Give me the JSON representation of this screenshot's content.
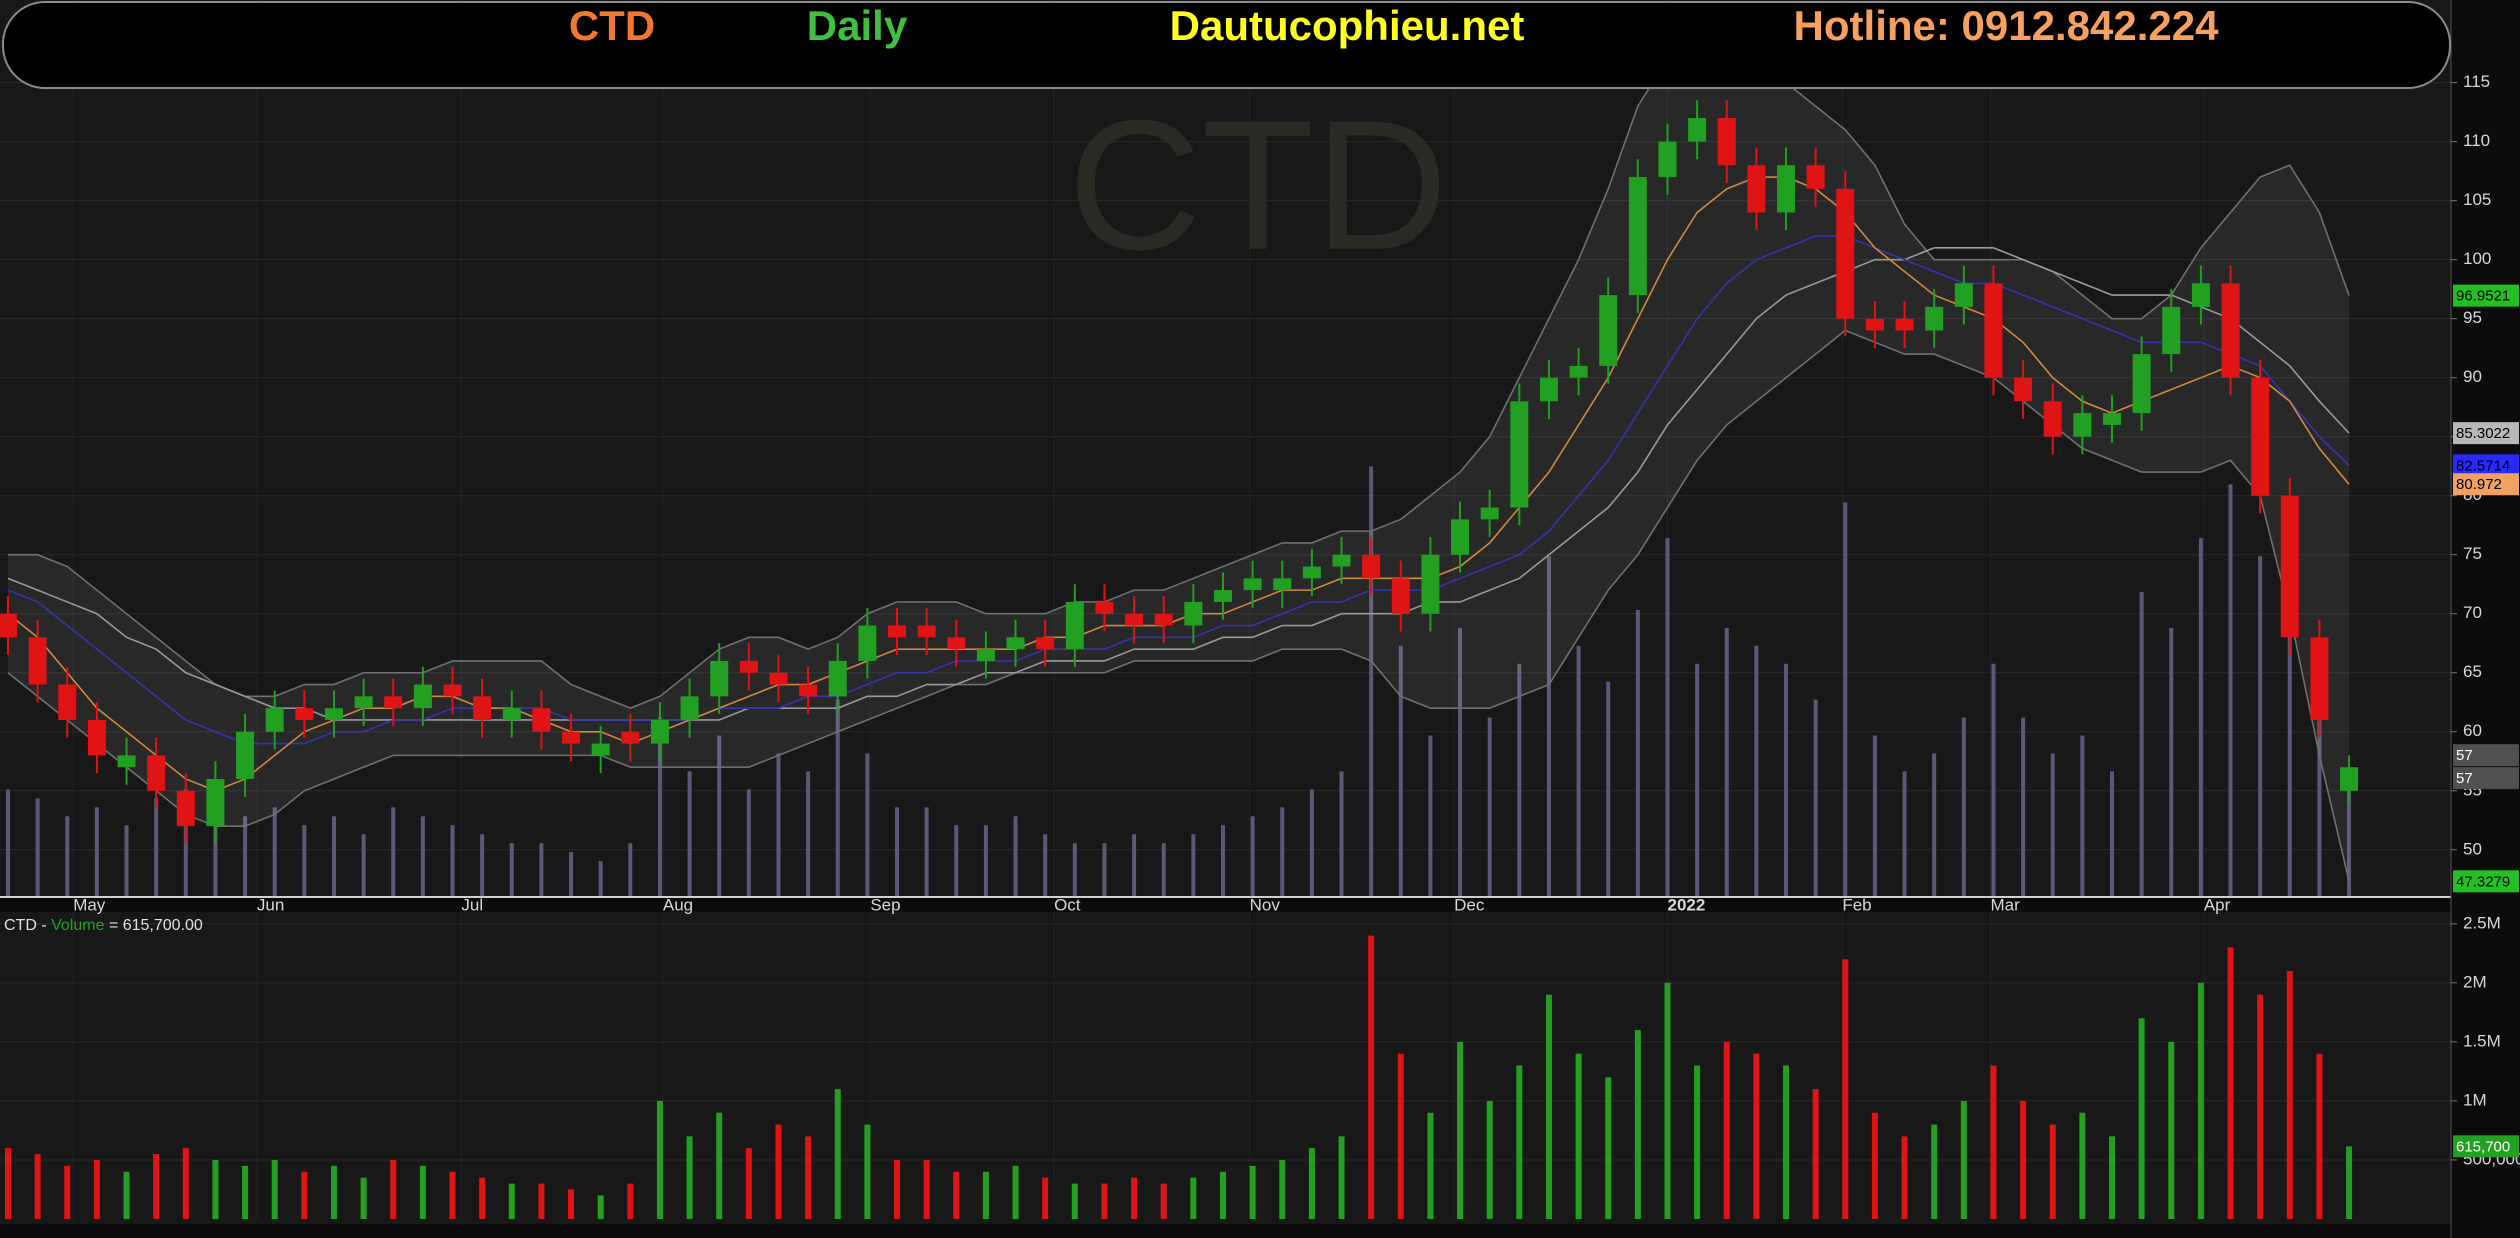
{
  "chart_data": {
    "type": "candlestick",
    "header": {
      "symbol": "CTD",
      "interval": "Daily",
      "site": "Dautucophieu.net",
      "hotline": "Hotline: 0912.842.224"
    },
    "watermark": "CTD",
    "legend": {
      "symbol": "CTD -",
      "name": "Volume",
      "text": "= 615,700.00"
    },
    "x": [
      0,
      1,
      2,
      3,
      4,
      5,
      6,
      7,
      8,
      9,
      10,
      11,
      12,
      13,
      14,
      15,
      16,
      17,
      18,
      19,
      20,
      21,
      22,
      23,
      24,
      25,
      26,
      27,
      28,
      29,
      30,
      31,
      32,
      33,
      34,
      35,
      36,
      37,
      38,
      39,
      40,
      41,
      42,
      43,
      44,
      45,
      46,
      47,
      48,
      49,
      50,
      51,
      52,
      53,
      54,
      55,
      56,
      57,
      58,
      59,
      60,
      61,
      62,
      63,
      64,
      65,
      66,
      67,
      68,
      69,
      70,
      71,
      72,
      73,
      74,
      75,
      76,
      77,
      78,
      79
    ],
    "xlim": [
      -0.27,
      82.44
    ],
    "xticks": [
      {
        "value": 2.2,
        "label": "May"
      },
      {
        "value": 8.4,
        "label": "Jun"
      },
      {
        "value": 15.3,
        "label": "Jul"
      },
      {
        "value": 22.1,
        "label": "Aug"
      },
      {
        "value": 29.1,
        "label": "Sep"
      },
      {
        "value": 35.3,
        "label": "Oct"
      },
      {
        "value": 41.9,
        "label": "Nov"
      },
      {
        "value": 48.8,
        "label": "Dec"
      },
      {
        "value": 56.0,
        "label": "2022"
      },
      {
        "value": 61.9,
        "label": "Feb"
      },
      {
        "value": 66.9,
        "label": "Mar"
      },
      {
        "value": 74.1,
        "label": "Apr"
      }
    ],
    "open": [
      70,
      68,
      64,
      61,
      57,
      58,
      55,
      52,
      56,
      60,
      62,
      61,
      62,
      63,
      62,
      64,
      63,
      61,
      62,
      60,
      58,
      60,
      59,
      61,
      63,
      66,
      65,
      64,
      63,
      66,
      69,
      69,
      68,
      66,
      67,
      68,
      67,
      71,
      70,
      70,
      69,
      71,
      72,
      72,
      73,
      74,
      75,
      73,
      70,
      75,
      78,
      79,
      88,
      90,
      91,
      97,
      107,
      110,
      112,
      108,
      104,
      108,
      106,
      95,
      95,
      94,
      96,
      98,
      90,
      88,
      85,
      86,
      87,
      92,
      96,
      98,
      90,
      80,
      68,
      55
    ],
    "high": [
      71.5,
      69.5,
      65.5,
      62.5,
      59.5,
      59.5,
      56.5,
      57.5,
      61.5,
      63.5,
      63.5,
      63.5,
      64.5,
      64.5,
      65.5,
      65.5,
      64.5,
      63.5,
      63.5,
      61.5,
      60.5,
      61.5,
      62.5,
      64.5,
      67.5,
      67.5,
      66.5,
      65.5,
      67.5,
      70.5,
      70.5,
      70.5,
      69.5,
      68.5,
      69.5,
      69.5,
      72.5,
      72.5,
      71.5,
      71.5,
      72.5,
      73.5,
      74.5,
      74.5,
      75.5,
      76.5,
      76.5,
      74.5,
      76.5,
      79.5,
      80.5,
      89.5,
      91.5,
      92.5,
      98.5,
      108.5,
      111.5,
      113.5,
      113.5,
      109.5,
      109.5,
      109.5,
      107.5,
      96.5,
      96.5,
      97.5,
      99.5,
      99.5,
      91.5,
      89.5,
      88.5,
      88.5,
      93.5,
      97.5,
      99.5,
      99.5,
      91.5,
      81.5,
      69.5,
      58
    ],
    "low": [
      66.5,
      62.5,
      59.5,
      56.5,
      55.5,
      53.5,
      50.5,
      50.5,
      54.5,
      58.5,
      59.5,
      59.5,
      60.5,
      60.5,
      60.5,
      61.5,
      59.5,
      59.5,
      58.5,
      57.5,
      56.5,
      57.5,
      57.5,
      59.5,
      61.5,
      63.5,
      62.5,
      61.5,
      61.5,
      64.5,
      66.5,
      66.5,
      65.5,
      64.5,
      65.5,
      65.5,
      65.5,
      68.5,
      67.5,
      67.5,
      67.5,
      69.5,
      70.5,
      70.5,
      71.5,
      72.5,
      71.5,
      68.5,
      68.5,
      73.5,
      76.5,
      77.5,
      86.5,
      88.5,
      89.5,
      95.5,
      105.5,
      108.5,
      106.5,
      102.5,
      102.5,
      104.5,
      93.5,
      92.5,
      92.5,
      92.5,
      94.5,
      88.5,
      86.5,
      83.5,
      83.5,
      84.5,
      85.5,
      90.5,
      94.5,
      88.5,
      78.5,
      66.5,
      59.5,
      54
    ],
    "close": [
      68,
      64,
      61,
      58,
      58,
      55,
      52,
      56,
      60,
      62,
      61,
      62,
      63,
      62,
      64,
      63,
      61,
      62,
      60,
      59,
      59,
      59,
      61,
      63,
      66,
      65,
      64,
      63,
      66,
      69,
      68,
      68,
      67,
      67,
      68,
      67,
      71,
      70,
      69,
      69,
      71,
      72,
      73,
      73,
      74,
      75,
      73,
      70,
      75,
      78,
      79,
      88,
      90,
      91,
      97,
      107,
      110,
      112,
      108,
      104,
      108,
      106,
      95,
      94,
      94,
      96,
      98,
      90,
      88,
      85,
      87,
      87,
      92,
      96,
      98,
      90,
      80,
      68,
      61,
      57
    ],
    "volume": [
      600000,
      550000,
      450000,
      500000,
      400000,
      550000,
      600000,
      500000,
      450000,
      500000,
      400000,
      450000,
      350000,
      500000,
      450000,
      400000,
      350000,
      300000,
      300000,
      250000,
      200000,
      300000,
      1000000,
      700000,
      900000,
      600000,
      800000,
      700000,
      1100000,
      800000,
      500000,
      500000,
      400000,
      400000,
      450000,
      350000,
      300000,
      300000,
      350000,
      300000,
      350000,
      400000,
      450000,
      500000,
      600000,
      700000,
      2400000,
      1400000,
      900000,
      1500000,
      1000000,
      1300000,
      1900000,
      1400000,
      1200000,
      1600000,
      2000000,
      1300000,
      1500000,
      1400000,
      1300000,
      1100000,
      2200000,
      900000,
      700000,
      800000,
      1000000,
      1300000,
      1000000,
      800000,
      900000,
      700000,
      1700000,
      1500000,
      2000000,
      2300000,
      1900000,
      2100000,
      1400000,
      615700
    ],
    "volume_last_label": "615,700",
    "up_color": "#22a022",
    "down_color": "#e01414",
    "overlay_color": "#5a5a78",
    "ylim": [
      46,
      122
    ],
    "yticks": [
      50,
      55,
      60,
      65,
      70,
      75,
      80,
      85,
      90,
      95,
      100,
      105,
      110,
      115
    ],
    "volume_ylim": [
      0,
      2600000
    ],
    "volume_yticks": [
      {
        "value": 500000,
        "label": "500,000"
      },
      {
        "value": 1000000,
        "label": "1M"
      },
      {
        "value": 1500000,
        "label": "1.5M"
      },
      {
        "value": 2000000,
        "label": "2M"
      },
      {
        "value": 2500000,
        "label": "2.5M"
      }
    ],
    "grid": true,
    "band_fill": "#ffffff",
    "series": [
      {
        "role": "band",
        "color": "#707070",
        "label_color": "#22c022",
        "values": [
          75,
          75,
          74,
          72,
          70,
          68,
          66,
          64,
          63,
          63,
          64,
          64,
          65,
          65,
          65,
          66,
          66,
          66,
          66,
          64,
          63,
          62,
          63,
          65,
          67,
          68,
          68,
          67,
          68,
          70,
          71,
          71,
          71,
          70,
          70,
          70,
          71,
          71,
          72,
          72,
          73,
          74,
          75,
          76,
          76,
          77,
          77,
          78,
          80,
          82,
          85,
          90,
          95,
          100,
          106,
          113,
          117,
          118,
          118,
          117,
          115,
          113,
          111,
          108,
          103,
          100,
          100,
          100,
          100,
          99,
          97,
          95,
          95,
          97,
          101,
          104,
          107,
          108,
          104,
          96.9521
        ]
      },
      {
        "role": "band",
        "color": "#707070",
        "label_color": "#22c022",
        "values": [
          65,
          63,
          61,
          59,
          57,
          55,
          53,
          52,
          52,
          53,
          55,
          56,
          57,
          58,
          58,
          58,
          58,
          58,
          58,
          58,
          58,
          57,
          57,
          57,
          57,
          57,
          58,
          59,
          60,
          61,
          62,
          63,
          64,
          64,
          65,
          65,
          65,
          65,
          66,
          66,
          66,
          66,
          66,
          67,
          67,
          67,
          66,
          63,
          62,
          62,
          62,
          63,
          64,
          68,
          72,
          75,
          79,
          83,
          86,
          88,
          90,
          92,
          94,
          93,
          92,
          92,
          91,
          90,
          88,
          86,
          84,
          83,
          82,
          82,
          82,
          83,
          80,
          70,
          58,
          47.3279
        ]
      },
      {
        "role": "line",
        "color": "#9a9a9a",
        "label_color": "#b8b8b8",
        "values": [
          73,
          72,
          71,
          70,
          68,
          67,
          65,
          64,
          63,
          62,
          62,
          61,
          61,
          61,
          61,
          61,
          61,
          61,
          61,
          61,
          61,
          61,
          61,
          61,
          61,
          62,
          62,
          62,
          62,
          63,
          63,
          64,
          64,
          65,
          65,
          66,
          66,
          66,
          67,
          67,
          67,
          68,
          68,
          69,
          69,
          70,
          70,
          70,
          71,
          71,
          72,
          73,
          75,
          77,
          79,
          82,
          86,
          89,
          92,
          95,
          97,
          98,
          99,
          100,
          100,
          101,
          101,
          101,
          100,
          99,
          98,
          97,
          97,
          97,
          96,
          95,
          93,
          91,
          88,
          85.3022
        ]
      },
      {
        "role": "line",
        "color": "#3434b0",
        "label_color": "#2a2aff",
        "values": [
          72,
          71,
          69,
          67,
          65,
          63,
          61,
          60,
          59,
          59,
          59,
          60,
          60,
          61,
          61,
          62,
          62,
          62,
          62,
          61,
          61,
          61,
          61,
          61,
          62,
          62,
          62,
          63,
          63,
          64,
          65,
          65,
          66,
          66,
          66,
          67,
          67,
          67,
          68,
          68,
          68,
          69,
          69,
          70,
          71,
          71,
          72,
          72,
          72,
          73,
          74,
          75,
          77,
          80,
          83,
          87,
          91,
          95,
          98,
          100,
          101,
          102,
          102,
          101,
          100,
          99,
          98,
          98,
          97,
          96,
          95,
          94,
          93,
          93,
          93,
          92,
          91,
          88,
          85,
          82.5714
        ]
      },
      {
        "role": "line",
        "color": "#d08a40",
        "label_color": "#f0a060",
        "values": [
          70,
          68,
          65,
          62,
          60,
          58,
          56,
          55,
          56,
          58,
          60,
          61,
          62,
          62,
          63,
          63,
          62,
          62,
          61,
          60,
          60,
          59,
          60,
          61,
          62,
          63,
          64,
          64,
          65,
          66,
          67,
          67,
          67,
          67,
          67,
          68,
          68,
          69,
          69,
          69,
          70,
          70,
          71,
          72,
          72,
          73,
          73,
          73,
          73,
          74,
          76,
          79,
          82,
          86,
          90,
          95,
          100,
          104,
          106,
          107,
          107,
          106,
          104,
          101,
          99,
          97,
          96,
          95,
          93,
          90,
          88,
          87,
          88,
          89,
          90,
          91,
          90,
          88,
          84,
          80.972
        ]
      }
    ]
  }
}
